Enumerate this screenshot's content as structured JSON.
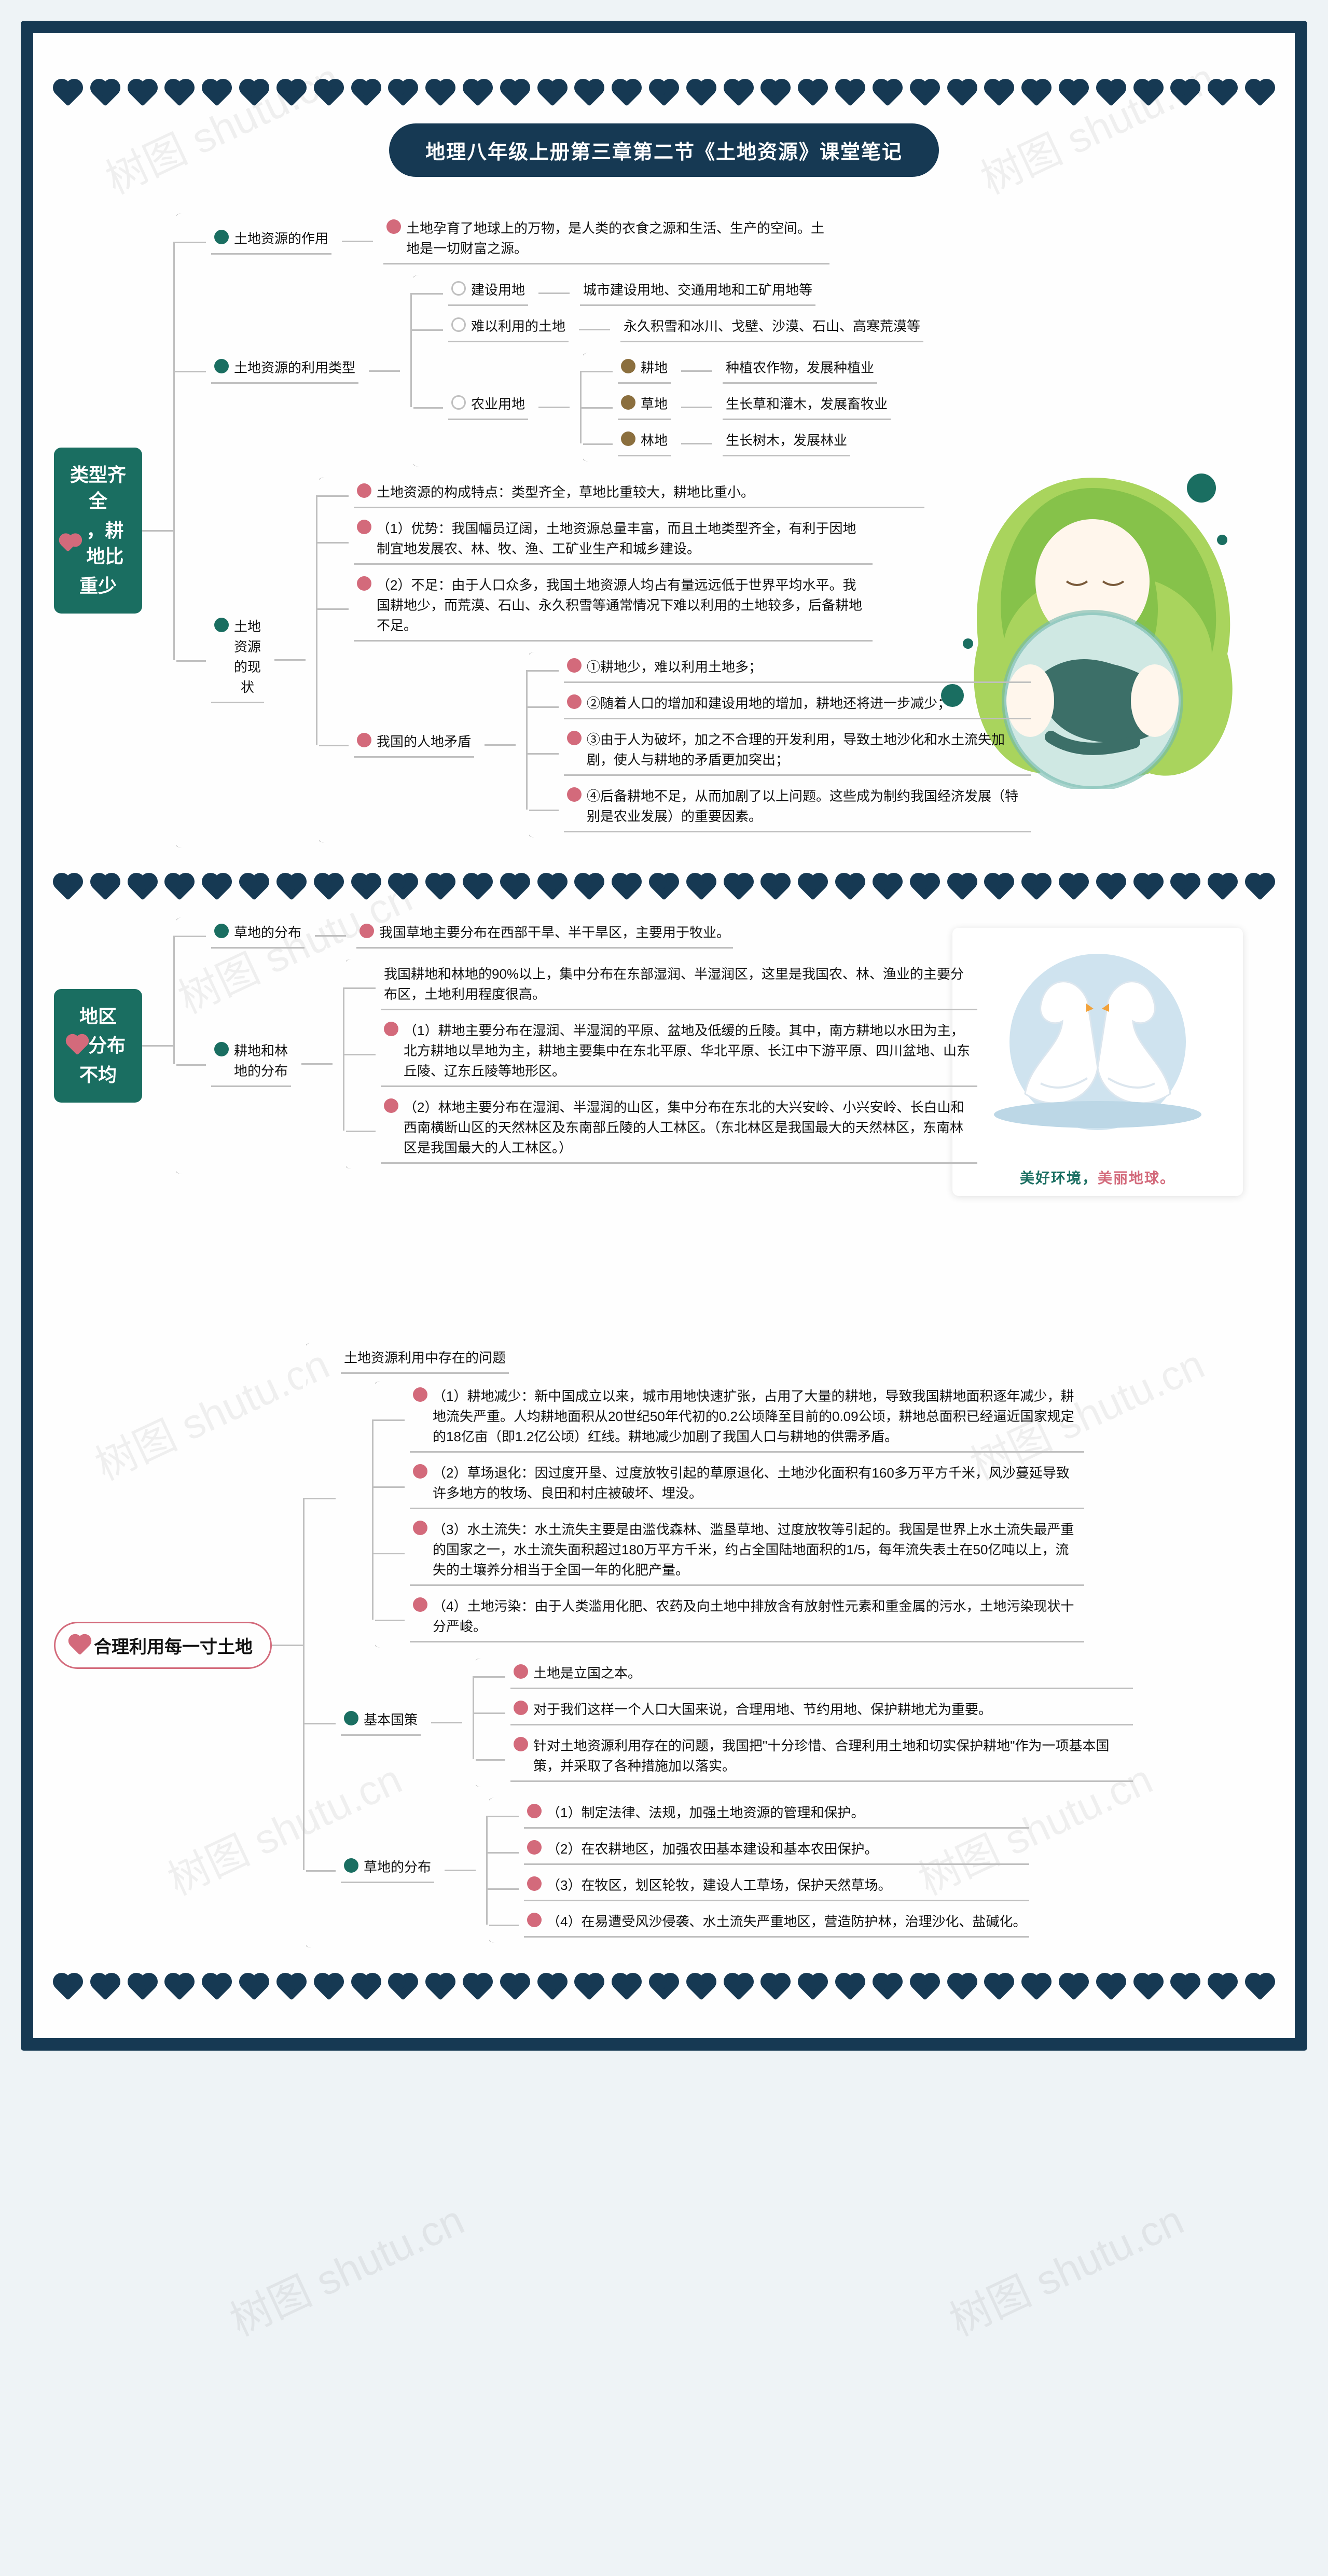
{
  "page": {
    "title": "地理八年级上册第三章第二节《土地资源》课堂笔记",
    "watermark": "树图 shutu.cn",
    "hearts_per_row": 33,
    "frame_border_color": "#163953",
    "accent_teal": "#1a6e61",
    "accent_pink": "#d36a7b",
    "accent_brown": "#8b6f3e",
    "connector_color": "#bfbfbf",
    "background_color": "#fefefe",
    "node_fontsize": 26,
    "root_fontsize": 36
  },
  "section1": {
    "root_line1": "类型齐全",
    "root_line2": "，耕地比",
    "root_line3": "重少",
    "n1": {
      "label": "土地资源的作用",
      "c1": "土地孕育了地球上的万物，是人类的衣食之源和生活、生产的空间。土地是一切财富之源。"
    },
    "n2": {
      "label": "土地资源的利用类型",
      "a": {
        "label": "建设用地",
        "c1": "城市建设用地、交通用地和工矿用地等"
      },
      "b": {
        "label": "难以利用的土地",
        "c1": "永久积雪和冰川、戈壁、沙漠、石山、高寒荒漠等"
      },
      "c": {
        "label": "农业用地",
        "x1": {
          "label": "耕地",
          "c1": "种植农作物，发展种植业"
        },
        "x2": {
          "label": "草地",
          "c1": "生长草和灌木，发展畜牧业"
        },
        "x3": {
          "label": "林地",
          "c1": "生长树木，发展林业"
        }
      }
    },
    "n3": {
      "label": "土地\n资源\n的现\n状",
      "c1": "土地资源的构成特点：类型齐全，草地比重较大，耕地比重小。",
      "c2": "（1）优势：我国幅员辽阔，土地资源总量丰富，而且土地类型齐全，有利于因地制宜地发展农、林、牧、渔、工矿业生产和城乡建设。",
      "c3": "（2）不足：由于人口众多，我国土地资源人均占有量远远低于世界平均水平。我国耕地少，而荒漠、石山、永久积雪等通常情况下难以利用的土地较多，后备耕地不足。",
      "d": {
        "label": "我国的人地矛盾",
        "c1": "①耕地少，难以利用土地多；",
        "c2": "②随着人口的增加和建设用地的增加，耕地还将进一步减少；",
        "c3": "③由于人为破坏，加之不合理的开发利用，导致土地沙化和水土流失加剧，使人与耕地的矛盾更加突出；",
        "c4": "④后备耕地不足，从而加剧了以上问题。这些成为制约我国经济发展（特别是农业发展）的重要因素。"
      }
    }
  },
  "section2": {
    "root_line1": "地区",
    "root_line2": "分布",
    "root_line3": "不均",
    "n1": {
      "label": "草地的分布",
      "c1": "我国草地主要分布在西部干旱、半干旱区，主要用于牧业。"
    },
    "n2": {
      "label": "耕地和林\n地的分布",
      "c0": "我国耕地和林地的90%以上，集中分布在东部湿润、半湿润区，这里是我国农、林、渔业的主要分布区，土地利用程度很高。",
      "c1": "（1）耕地主要分布在湿润、半湿润的平原、盆地及低缓的丘陵。其中，南方耕地以水田为主，北方耕地以旱地为主，耕地主要集中在东北平原、华北平原、长江中下游平原、四川盆地、山东丘陵、辽东丘陵等地形区。",
      "c2": "（2）林地主要分布在湿润、半湿润的山区，集中分布在东北的大兴安岭、小兴安岭、长白山和西南横断山区的天然林区及东南部丘陵的人工林区。（东北林区是我国最大的天然林区，东南林区是我国最大的人工林区。）"
    },
    "caption_a": "美好环境，",
    "caption_b": "美丽地球。"
  },
  "section3": {
    "root": "合理利用每一寸土地",
    "n1": {
      "label": "土地资源利用中存在的问题",
      "c1": "（1）耕地减少：新中国成立以来，城市用地快速扩张，占用了大量的耕地，导致我国耕地面积逐年减少，耕地流失严重。人均耕地面积从20世纪50年代初的0.2公顷降至目前的0.09公顷，耕地总面积已经逼近国家规定的18亿亩（即1.2亿公顷）红线。耕地减少加剧了我国人口与耕地的供需矛盾。",
      "c2": "（2）草场退化：因过度开垦、过度放牧引起的草原退化、土地沙化面积有160多万平方千米，风沙蔓延导致许多地方的牧场、良田和村庄被破坏、埋没。",
      "c3": "（3）水土流失：水土流失主要是由滥伐森林、滥垦草地、过度放牧等引起的。我国是世界上水土流失最严重的国家之一，水土流失面积超过180万平方千米，约占全国陆地面积的1/5，每年流失表土在50亿吨以上，流失的土壤养分相当于全国一年的化肥产量。",
      "c4": "（4）土地污染：由于人类滥用化肥、农药及向土地中排放含有放射性元素和重金属的污水，土地污染现状十分严峻。"
    },
    "n2": {
      "label": "基本国策",
      "c1": "土地是立国之本。",
      "c2": "对于我们这样一个人口大国来说，合理用地、节约用地、保护耕地尤为重要。",
      "c3": "针对土地资源利用存在的问题，我国把\"十分珍惜、合理利用土地和切实保护耕地\"作为一项基本国策，并采取了各种措施加以落实。"
    },
    "n3": {
      "label": "草地的分布",
      "c1": "（1）制定法律、法规，加强土地资源的管理和保护。",
      "c2": "（2）在农耕地区，加强农田基本建设和基本农田保护。",
      "c3": "（3）在牧区，划区轮牧，建设人工草场，保护天然草场。",
      "c4": "（4）在易遭受风沙侵袭、水土流失严重地区，营造防护林，治理沙化、盐碱化。"
    }
  }
}
